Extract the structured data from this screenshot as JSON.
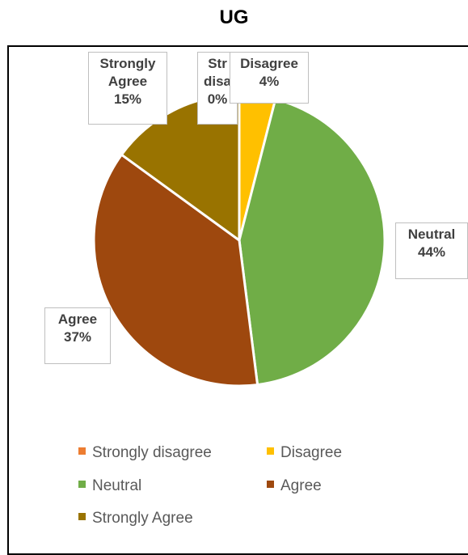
{
  "chart_data": {
    "type": "pie",
    "title": "UG",
    "categories": [
      "Strongly disagree",
      "Disagree",
      "Neutral",
      "Agree",
      "Strongly Agree"
    ],
    "values": [
      0,
      4,
      44,
      37,
      15
    ],
    "value_labels": [
      "0%",
      "4%",
      "44%",
      "37%",
      "15%"
    ],
    "label_lines": [
      [
        "Str",
        "disa"
      ],
      [
        "Disagree"
      ],
      [
        "Neutral"
      ],
      [
        "Agree"
      ],
      [
        "Strongly",
        "Agree"
      ]
    ],
    "colors": [
      "#ED7D31",
      "#FFC000",
      "#70AD47",
      "#9E480E",
      "#997300"
    ],
    "legend_position": "bottom"
  }
}
